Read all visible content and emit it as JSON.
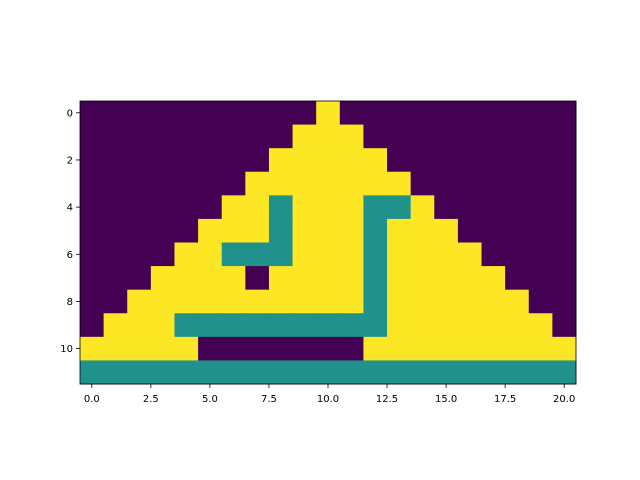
{
  "chart_data": {
    "type": "heatmap",
    "colormap": "viridis",
    "colors": {
      "0": "#440154",
      "1": "#21918c",
      "2": "#fde725"
    },
    "x_ticks": [
      "0.0",
      "2.5",
      "5.0",
      "7.5",
      "10.0",
      "12.5",
      "15.0",
      "17.5",
      "20.0"
    ],
    "y_ticks": [
      "0",
      "2",
      "4",
      "6",
      "8",
      "10"
    ],
    "grid": [
      [
        0,
        0,
        0,
        0,
        0,
        0,
        0,
        0,
        0,
        0,
        2,
        0,
        0,
        0,
        0,
        0,
        0,
        0,
        0,
        0,
        0
      ],
      [
        0,
        0,
        0,
        0,
        0,
        0,
        0,
        0,
        0,
        2,
        2,
        2,
        0,
        0,
        0,
        0,
        0,
        0,
        0,
        0,
        0
      ],
      [
        0,
        0,
        0,
        0,
        0,
        0,
        0,
        0,
        2,
        2,
        2,
        2,
        2,
        0,
        0,
        0,
        0,
        0,
        0,
        0,
        0
      ],
      [
        0,
        0,
        0,
        0,
        0,
        0,
        0,
        2,
        2,
        2,
        2,
        2,
        2,
        2,
        0,
        0,
        0,
        0,
        0,
        0,
        0
      ],
      [
        0,
        0,
        0,
        0,
        0,
        0,
        2,
        2,
        1,
        2,
        2,
        2,
        1,
        1,
        2,
        0,
        0,
        0,
        0,
        0,
        0
      ],
      [
        0,
        0,
        0,
        0,
        0,
        2,
        2,
        2,
        1,
        2,
        2,
        2,
        1,
        2,
        2,
        2,
        0,
        0,
        0,
        0,
        0
      ],
      [
        0,
        0,
        0,
        0,
        2,
        2,
        1,
        1,
        1,
        2,
        2,
        2,
        1,
        2,
        2,
        2,
        2,
        0,
        0,
        0,
        0
      ],
      [
        0,
        0,
        0,
        2,
        2,
        2,
        2,
        0,
        2,
        2,
        2,
        2,
        1,
        2,
        2,
        2,
        2,
        2,
        0,
        0,
        0
      ],
      [
        0,
        0,
        2,
        2,
        2,
        2,
        2,
        2,
        2,
        2,
        2,
        2,
        1,
        2,
        2,
        2,
        2,
        2,
        2,
        0,
        0
      ],
      [
        0,
        2,
        2,
        2,
        1,
        1,
        1,
        1,
        1,
        1,
        1,
        1,
        1,
        2,
        2,
        2,
        2,
        2,
        2,
        2,
        0
      ],
      [
        2,
        2,
        2,
        2,
        2,
        0,
        0,
        0,
        0,
        0,
        0,
        0,
        2,
        2,
        2,
        2,
        2,
        2,
        2,
        2,
        2
      ],
      [
        1,
        1,
        1,
        1,
        1,
        1,
        1,
        1,
        1,
        1,
        1,
        1,
        1,
        1,
        1,
        1,
        1,
        1,
        1,
        1,
        1
      ]
    ]
  }
}
